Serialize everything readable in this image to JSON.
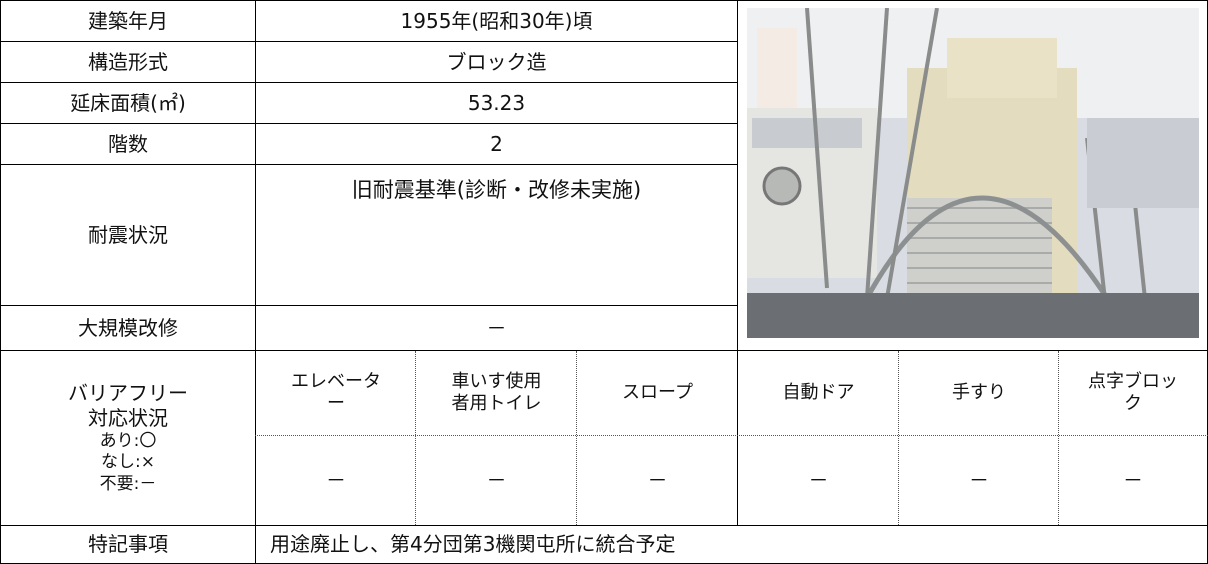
{
  "rows": [
    {
      "label": "建築年月",
      "value": "1955年(昭和30年)頃"
    },
    {
      "label": "構造形式",
      "value": "ブロック造"
    },
    {
      "label": "延床面積(㎡)",
      "value": "53.23"
    },
    {
      "label": "階数",
      "value": "2"
    },
    {
      "label": "耐震状況",
      "value": "旧耐震基準(診断・改修未実施)"
    },
    {
      "label": "大規模改修",
      "value": "－"
    }
  ],
  "barrier_free": {
    "heading": [
      "バリアフリー",
      "対応状況"
    ],
    "legend": [
      "あり:〇",
      "なし:×",
      "不要:－"
    ],
    "items": [
      "エレベーター",
      "車いす使用者用トイレ",
      "スロープ",
      "自動ドア",
      "手すり",
      "点字ブロック"
    ],
    "values": [
      "－",
      "－",
      "－",
      "－",
      "－",
      "－"
    ]
  },
  "notes": {
    "label": "特記事項",
    "value": "用途廃止し、第4分団第3機関屯所に統合予定"
  }
}
